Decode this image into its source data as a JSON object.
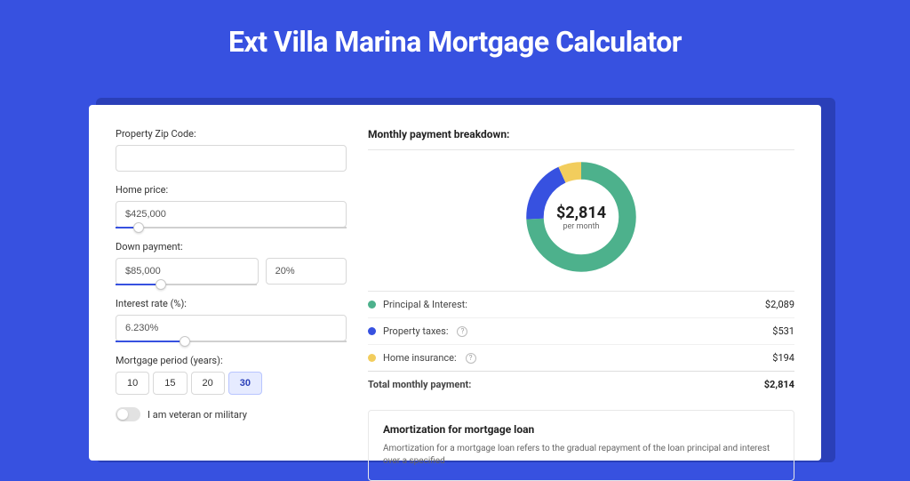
{
  "title": "Ext Villa Marina Mortgage Calculator",
  "colors": {
    "page_bg": "#3751e0",
    "card_shadow": "#2a3fb8",
    "accent": "#3751e0"
  },
  "form": {
    "zip": {
      "label": "Property Zip Code:",
      "value": ""
    },
    "price": {
      "label": "Home price:",
      "value": "$425,000",
      "slider_pct": 10
    },
    "down": {
      "label": "Down payment:",
      "amount": "$85,000",
      "pct": "20%",
      "slider_pct": 20
    },
    "rate": {
      "label": "Interest rate (%):",
      "value": "6.230%",
      "slider_pct": 30
    },
    "period": {
      "label": "Mortgage period (years):",
      "options": [
        "10",
        "15",
        "20",
        "30"
      ],
      "selected": "30"
    },
    "veteran": {
      "label": "I am veteran or military",
      "on": false
    }
  },
  "breakdown": {
    "title": "Monthly payment breakdown:",
    "center_amount": "$2,814",
    "center_sub": "per month",
    "items": [
      {
        "label": "Principal & Interest:",
        "value": "$2,089",
        "num": 2089,
        "color": "#4db18c",
        "info": false
      },
      {
        "label": "Property taxes:",
        "value": "$531",
        "num": 531,
        "color": "#3751e0",
        "info": true
      },
      {
        "label": "Home insurance:",
        "value": "$194",
        "num": 194,
        "color": "#f2cd5d",
        "info": true
      }
    ],
    "total_label": "Total monthly payment:",
    "total_value": "$2,814",
    "total_num": 2814,
    "donut_stroke": 18,
    "donut_radius": 48,
    "donut_bg": "#ffffff"
  },
  "amortization": {
    "title": "Amortization for mortgage loan",
    "text": "Amortization for a mortgage loan refers to the gradual repayment of the loan principal and interest over a specified"
  }
}
